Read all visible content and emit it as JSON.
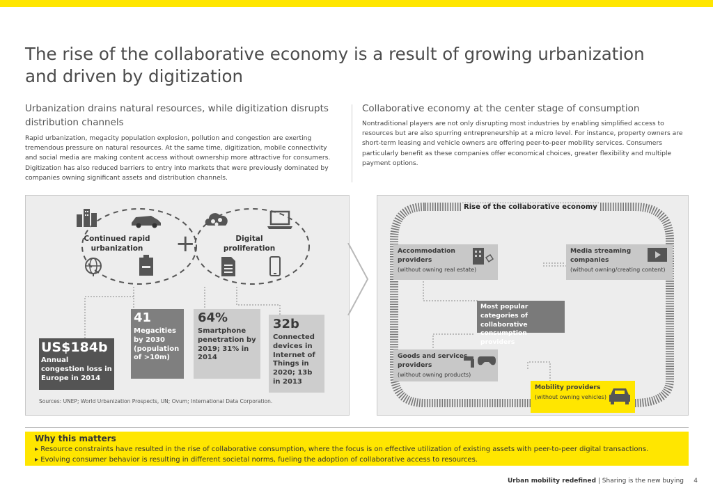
{
  "title": "The rise of the collaborative economy is a result of growing urbanization and driven by digitization",
  "left_section": {
    "heading": "Urbanization drains natural resources, while digitization disrupts distribution channels",
    "body": "Rapid urbanization, megacity population explosion, pollution and congestion are exerting tremendous pressure on natural resources. At the same time, digitization, mobile connectivity and social media are making content access without ownership more attractive for consumers. Digitization has also reduced barriers to entry into markets that were previously dominated by companies owning significant assets and distribution channels."
  },
  "right_section": {
    "heading": "Collaborative economy at the center stage of consumption",
    "body": "Nontraditional players are not only disrupting most industries by enabling simplified access to resources but are also spurring entrepreneurship at a micro level. For instance, property owners are short-term leasing and vehicle owners are offering peer-to-peer mobility services. Consumers particularly benefit as these companies offer economical choices, greater flexibility and multiple payment options."
  },
  "left_panel": {
    "urbanization_label": "Continued rapid urbanization",
    "plus": "+",
    "digital_label": "Digital proliferation",
    "stats": {
      "congestion": {
        "value": "US$184b",
        "desc": "Annual congestion loss in Europe in 2014"
      },
      "megacities": {
        "value": "41",
        "desc": "Megacities by 2030 (population of >10m)"
      },
      "smartphone": {
        "value": "64%",
        "desc": "Smartphone penetration by 2019; 31% in 2014"
      },
      "devices": {
        "value": "32b",
        "desc": "Connected devices in Internet of Things in 2020; 13b in 2013"
      }
    },
    "sources": "Sources: UNEP; World Urbanization Prospects, UN; Ovum; International Data Corporation."
  },
  "right_panel": {
    "ribbon_title": "Rise of the collaborative economy",
    "center": "Most popular categories of collaborative consumption providers",
    "categories": {
      "accommodation": {
        "name": "Accommodation providers",
        "note": "(without owning real estate)"
      },
      "media": {
        "name": "Media streaming companies",
        "note": "(without owning/creating content)"
      },
      "goods": {
        "name": "Goods and services providers",
        "note": "(without owning products)"
      },
      "mobility": {
        "name": "Mobility providers",
        "note": "(without owning vehicles)"
      }
    }
  },
  "why": {
    "title": "Why this matters",
    "points": [
      "Resource constraints have resulted in the rise of collaborative consumption, where the focus is on effective utilization of existing assets with peer-to-peer digital transactions.",
      "Evolving consumer behavior is resulting in different societal norms, fueling the adoption of collaborative access to resources."
    ]
  },
  "footer": {
    "bold": "Urban mobility redefined",
    "rest": "Sharing is the new buying",
    "page": "4"
  },
  "colors": {
    "accent": "#ffe600",
    "grey_dark": "#545454",
    "grey_mid": "#7f7f7f",
    "grey_light": "#cdcdcd",
    "panel": "#ededed"
  }
}
